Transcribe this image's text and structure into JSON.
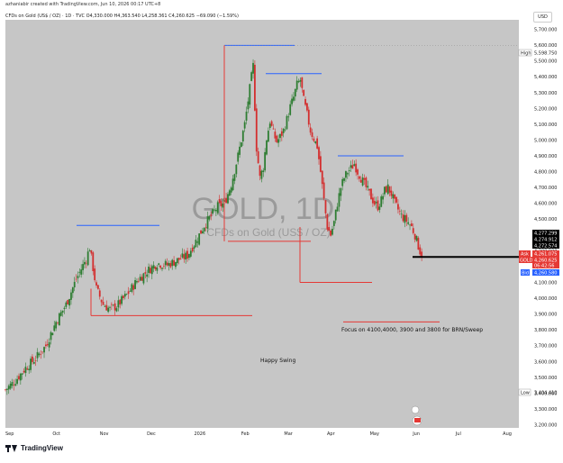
{
  "header": {
    "caption": "azhaniabir created with TradingView.com, Jun 10, 2026 00:17 UTC+8",
    "symbol_line": "CFDs on Gold (US$ / OZ) · 1D · TVC O4,330.000 H4,363.540 L4,258.361 C4,260.625 −69.090 (−1.59%)",
    "currency_button": "USD"
  },
  "watermark": {
    "big": "GOLD, 1D",
    "small": "CFDs on Gold (US$ / OZ)"
  },
  "annotations": {
    "focus_note": "Focus on 4100,4000, 3900 and 3800 for BRN/Sweep",
    "swing_label": "Happy Swing"
  },
  "price_tags": {
    "high_label": "High",
    "high_value": "5,598.750",
    "low_label": "Low",
    "low_value": "3,404.410",
    "top_tags": [
      "4,277.299",
      "4,274.912",
      "4,272.574"
    ],
    "ask_label": "Ask",
    "ask_value": "4,261.075",
    "gold_label": "GOLD",
    "gold_value": "4,260.625",
    "gold_sub": "06:42:56",
    "bid_label": "Bid",
    "bid_value": "4,260.580"
  },
  "footer": {
    "brand": "TradingView"
  },
  "colors": {
    "up": "#2e7d32",
    "down": "#d32f2f",
    "blue_line": "#2962ff",
    "red_line": "#e53935",
    "black_line": "#000000",
    "gold_tag": "#e53935",
    "bid_tag": "#2962ff"
  },
  "chart_data": {
    "type": "candlestick",
    "symbol": "GOLD",
    "timeframe": "1D",
    "x_tick_labels": [
      "Sep",
      "Oct",
      "Nov",
      "Dec",
      "2026",
      "Feb",
      "Mar",
      "Apr",
      "May",
      "Jun",
      "Jul",
      "Aug"
    ],
    "y_tick_labels": [
      "5,700.000",
      "5,600.000",
      "5,500.000",
      "5,400.000",
      "5,300.000",
      "5,200.000",
      "5,100.000",
      "5,000.000",
      "4,900.000",
      "4,800.000",
      "4,700.000",
      "4,600.000",
      "4,500.000",
      "4,400.000",
      "4,300.000",
      "4,200.000",
      "4,100.000",
      "4,000.000",
      "3,900.000",
      "3,800.000",
      "3,700.000",
      "3,600.000",
      "3,500.000",
      "3,400.000",
      "3,300.000",
      "3,200.000"
    ],
    "ylim": [
      3180,
      5760
    ],
    "close_path": [
      [
        0,
        3420
      ],
      [
        6,
        3480
      ],
      [
        12,
        3560
      ],
      [
        18,
        3620
      ],
      [
        24,
        3700
      ],
      [
        30,
        3850
      ],
      [
        36,
        3960
      ],
      [
        42,
        4120
      ],
      [
        48,
        4250
      ],
      [
        50,
        4320
      ],
      [
        54,
        4060
      ],
      [
        58,
        3960
      ],
      [
        62,
        3930
      ],
      [
        66,
        3950
      ],
      [
        72,
        4020
      ],
      [
        78,
        4110
      ],
      [
        84,
        4170
      ],
      [
        90,
        4220
      ],
      [
        96,
        4210
      ],
      [
        102,
        4240
      ],
      [
        108,
        4270
      ],
      [
        114,
        4380
      ],
      [
        118,
        4460
      ],
      [
        122,
        4520
      ],
      [
        126,
        4580
      ],
      [
        130,
        4600
      ],
      [
        134,
        4720
      ],
      [
        138,
        4900
      ],
      [
        142,
        5100
      ],
      [
        146,
        5400
      ],
      [
        147,
        5470
      ],
      [
        149,
        4950
      ],
      [
        151,
        4760
      ],
      [
        153,
        4830
      ],
      [
        155,
        5010
      ],
      [
        157,
        5120
      ],
      [
        159,
        5040
      ],
      [
        161,
        4990
      ],
      [
        163,
        5020
      ],
      [
        165,
        5060
      ],
      [
        167,
        5130
      ],
      [
        169,
        5210
      ],
      [
        171,
        5270
      ],
      [
        173,
        5350
      ],
      [
        175,
        5380
      ],
      [
        177,
        5250
      ],
      [
        179,
        5160
      ],
      [
        181,
        5060
      ],
      [
        183,
        5010
      ],
      [
        185,
        4960
      ],
      [
        187,
        4800
      ],
      [
        189,
        4620
      ],
      [
        191,
        4450
      ],
      [
        193,
        4400
      ],
      [
        195,
        4480
      ],
      [
        197,
        4600
      ],
      [
        199,
        4700
      ],
      [
        201,
        4760
      ],
      [
        203,
        4800
      ],
      [
        205,
        4820
      ],
      [
        207,
        4850
      ],
      [
        209,
        4800
      ],
      [
        211,
        4760
      ],
      [
        213,
        4720
      ],
      [
        215,
        4680
      ],
      [
        217,
        4640
      ],
      [
        219,
        4600
      ],
      [
        221,
        4580
      ],
      [
        223,
        4620
      ],
      [
        225,
        4680
      ],
      [
        227,
        4700
      ],
      [
        229,
        4660
      ],
      [
        231,
        4600
      ],
      [
        233,
        4560
      ],
      [
        235,
        4520
      ],
      [
        237,
        4500
      ],
      [
        239,
        4480
      ],
      [
        241,
        4450
      ],
      [
        243,
        4400
      ],
      [
        245,
        4330
      ],
      [
        247,
        4260.625
      ]
    ],
    "lines": [
      {
        "kind": "horizontal",
        "color": "blue",
        "price": 5598.75
      },
      {
        "kind": "horizontal",
        "color": "blue",
        "price": 5420
      },
      {
        "kind": "horizontal",
        "color": "blue",
        "price": 4900
      },
      {
        "kind": "horizontal",
        "color": "blue",
        "price": 4460
      },
      {
        "kind": "horizontal",
        "color": "red",
        "price": 4360
      },
      {
        "kind": "horizontal",
        "color": "red",
        "price": 4100
      },
      {
        "kind": "horizontal",
        "color": "red",
        "price": 3890
      },
      {
        "kind": "horizontal",
        "color": "red",
        "price": 3850
      },
      {
        "kind": "horizontal",
        "color": "black",
        "price": 4260.625
      }
    ],
    "high": 5598.75,
    "low": 3404.41,
    "last": 4260.625,
    "grid": false
  }
}
